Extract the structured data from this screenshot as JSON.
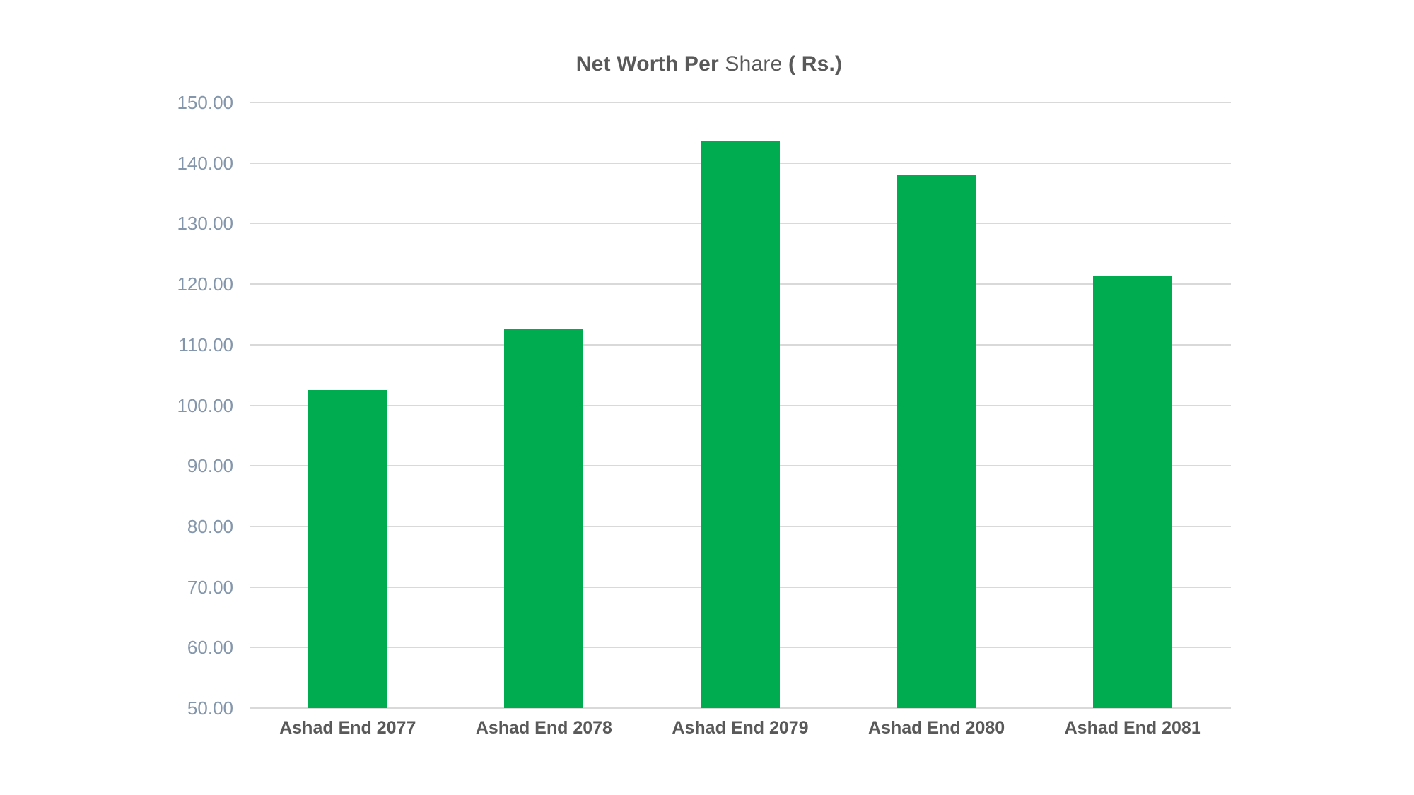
{
  "title": {
    "part1": "Net Worth Per ",
    "part2": "Share ",
    "part3": "( Rs.)"
  },
  "colors": {
    "bar": "#00AC50",
    "gridline": "#D9D9D9",
    "axis_line": "#D9D9D9",
    "y_tick_label": "#8496AB",
    "category_label": "#595959",
    "title": "#595959",
    "background": "#FFFFFF"
  },
  "chart_data": {
    "type": "bar",
    "title": "Net Worth Per Share ( Rs.)",
    "categories": [
      "Ashad End 2077",
      "Ashad End 2078",
      "Ashad End 2079",
      "Ashad End 2080",
      "Ashad End 2081"
    ],
    "values": [
      102.5,
      112.5,
      143.6,
      138.1,
      121.4
    ],
    "xlabel": "",
    "ylabel": "",
    "ylim": [
      50,
      150
    ],
    "ytick_step": 10,
    "ytick_labels": [
      "150.00",
      "140.00",
      "130.00",
      "120.00",
      "110.00",
      "100.00",
      "90.00",
      "80.00",
      "70.00",
      "60.00",
      "50.00"
    ],
    "grid": true,
    "legend": "none"
  }
}
